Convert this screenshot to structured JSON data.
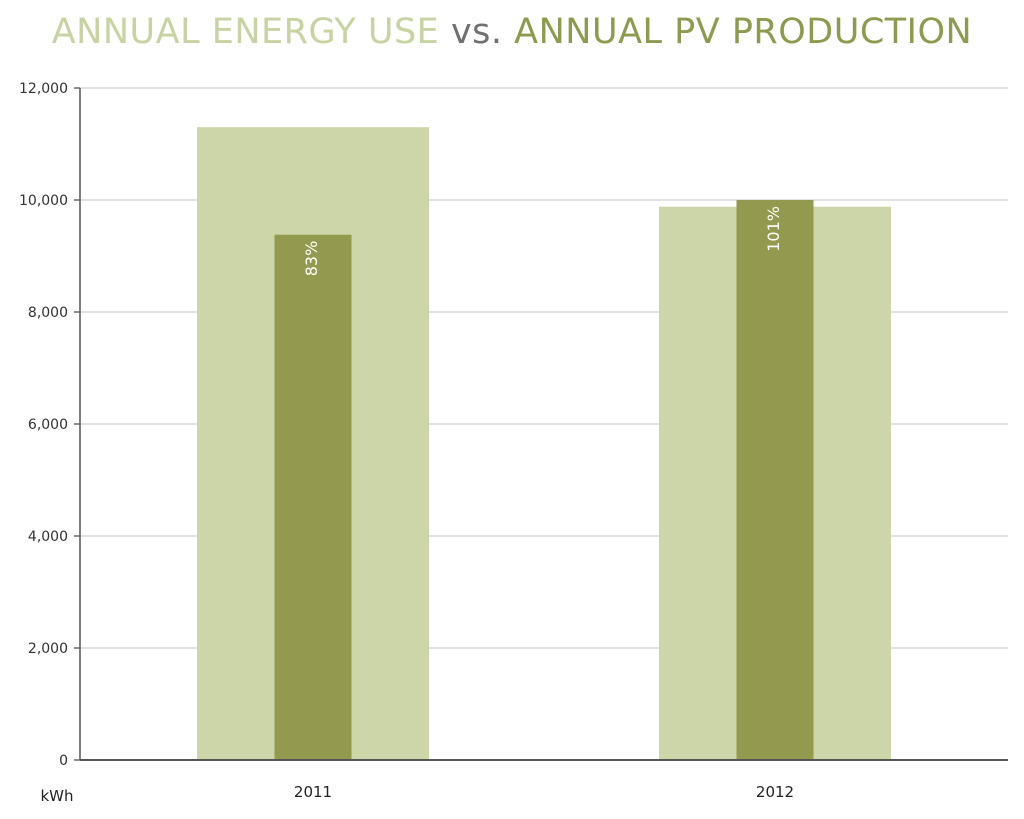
{
  "title": {
    "part1": "ANNUAL ENERGY USE",
    "part2": "vs.",
    "part3": "ANNUAL PV PRODUCTION"
  },
  "colors": {
    "energy_use": "#ccd6a8",
    "pv_production": "#93994e",
    "axis": "#555555",
    "grid": "#d0d0d0",
    "title_use": "#c7d3a3",
    "title_vs": "#707070",
    "title_pv": "#8e9a50"
  },
  "chart_data": {
    "type": "bar",
    "title": "ANNUAL ENERGY USE vs. ANNUAL PV PRODUCTION",
    "categories": [
      "2011",
      "2012"
    ],
    "series": [
      {
        "name": "ANNUAL ENERGY USE",
        "values": [
          11300,
          9880
        ]
      },
      {
        "name": "ANNUAL PV PRODUCTION",
        "values": [
          9380,
          10000
        ]
      }
    ],
    "percent_labels": [
      "83%",
      "101%"
    ],
    "ylabel": "kWh",
    "xlabel": "",
    "ylim": [
      0,
      12000
    ],
    "yticks": [
      0,
      2000,
      4000,
      6000,
      8000,
      10000,
      12000
    ],
    "ytick_labels": [
      "0",
      "2,000",
      "4,000",
      "6,000",
      "8,000",
      "10,000",
      "12,000"
    ],
    "grid": true,
    "legend": "none"
  }
}
